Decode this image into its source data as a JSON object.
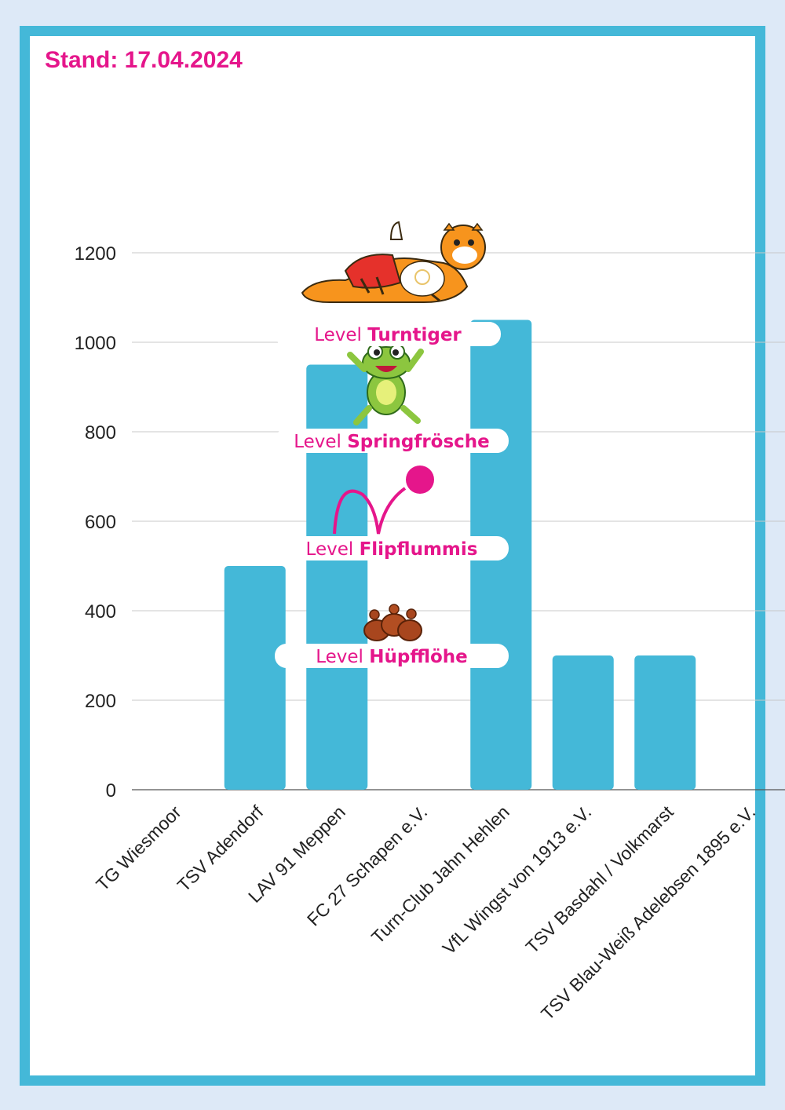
{
  "header": {
    "stand": "Stand: 17.04.2024"
  },
  "chart_data": {
    "type": "bar",
    "categories": [
      "TG Wiesmoor",
      "TSV Adendorf",
      "LAV 91 Meppen",
      "FC 27 Schapen e.V.",
      "Turn-Club Jahn Hehlen",
      "VfL Wingst von 1913 e.V.",
      "TSV Basdahl / Volkmarst",
      "TSV Blau-Weiß Adelebsen 1895 e.V."
    ],
    "values": [
      0,
      500,
      950,
      0,
      1050,
      300,
      300,
      0
    ],
    "yticks": [
      0,
      200,
      400,
      600,
      800,
      1000,
      1200
    ],
    "ylim": [
      0,
      1200
    ],
    "grid": true,
    "bar_color": "#44b8d8",
    "accent_color": "#e5168b",
    "levels": [
      {
        "prefix": "Level",
        "name": "Hüpfflöhe",
        "icon": "fleas-icon"
      },
      {
        "prefix": "Level",
        "name": "Flipflummis",
        "icon": "bouncing-ball-icon"
      },
      {
        "prefix": "Level",
        "name": "Springfrösche",
        "icon": "frog-icon"
      },
      {
        "prefix": "Level",
        "name": "Turntiger",
        "icon": "tiger-icon"
      }
    ]
  }
}
